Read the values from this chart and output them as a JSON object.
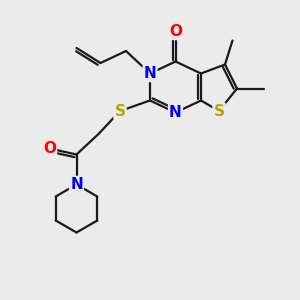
{
  "background_color": "#ebebeb",
  "atom_colors": {
    "C": "#000000",
    "N": "#0000ee",
    "O": "#ff0000",
    "S": "#aaaa00",
    "H": "#000000"
  },
  "bond_color": "#1a1a1a",
  "bond_width": 1.6,
  "font_size_atoms": 11
}
